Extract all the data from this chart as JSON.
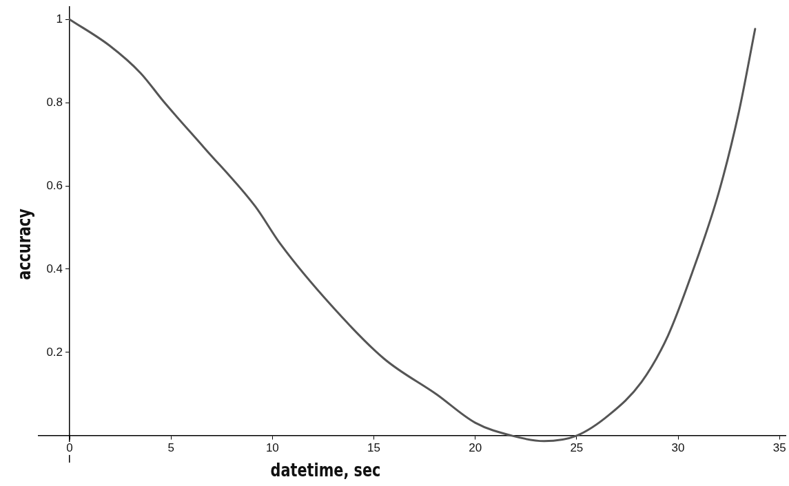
{
  "chart_data": {
    "type": "line",
    "xlabel": "datetime, sec",
    "ylabel": "accuracy",
    "xlim": [
      -1.53,
      35.3
    ],
    "ylim": [
      -0.063,
      1.03
    ],
    "xticks": [
      0,
      5,
      10,
      15,
      20,
      25,
      30,
      35
    ],
    "yticks": [
      0.2,
      0.4,
      0.6,
      0.8,
      1
    ],
    "grid": false,
    "marker": "none",
    "line_style": "solid",
    "series": [
      {
        "color": "#555555",
        "x": [
          0,
          1.97,
          3.5,
          4.63,
          6.63,
          9.15,
          10.4,
          12.9,
          15.5,
          18.1,
          20.0,
          21.8,
          23.4,
          25.0,
          26.6,
          28.2,
          29.5,
          30.7,
          32.0,
          33.0,
          33.8
        ],
        "values": [
          1.0,
          0.937,
          0.871,
          0.803,
          0.692,
          0.551,
          0.46,
          0.313,
          0.185,
          0.099,
          0.031,
          0.0,
          -0.013,
          0.0,
          0.05,
          0.129,
          0.24,
          0.392,
          0.583,
          0.778,
          0.977
        ]
      }
    ]
  }
}
